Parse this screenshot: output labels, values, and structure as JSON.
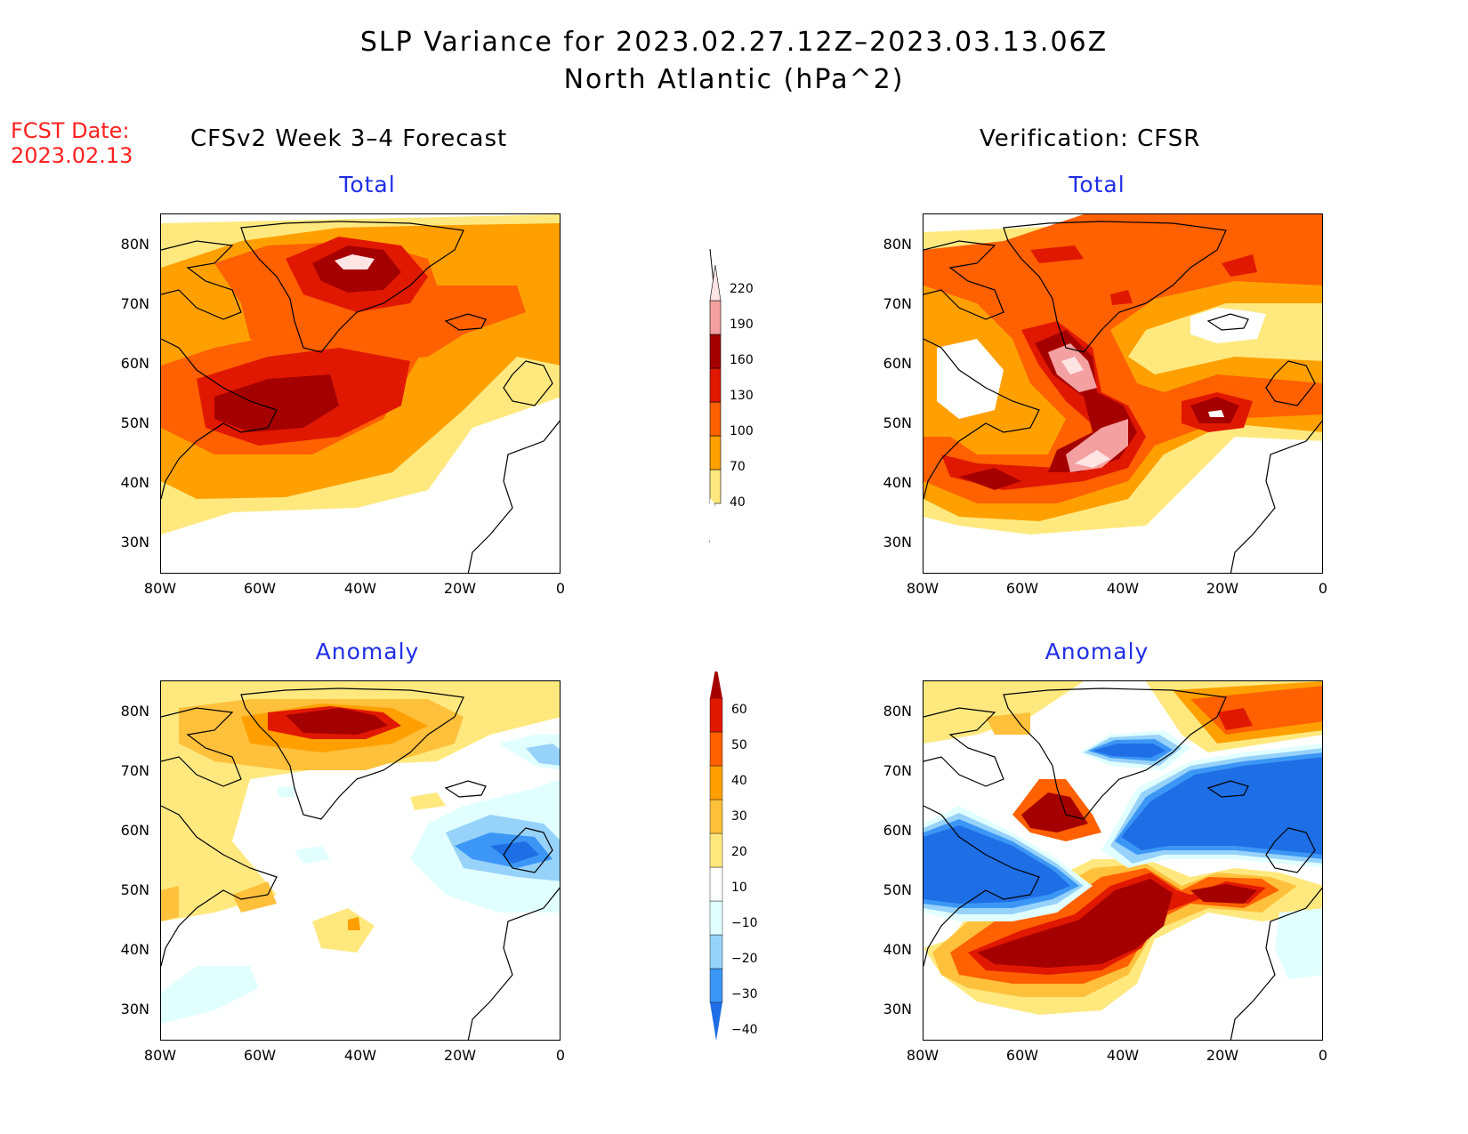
{
  "header": {
    "title_line1": "SLP Variance for 2023.02.27.12Z–2023.03.13.06Z",
    "title_line2": "North Atlantic (hPa^2)"
  },
  "fcst": {
    "line1": "FCST Date:",
    "line2": "2023.02.13"
  },
  "columns": {
    "forecast": "CFSv2 Week 3–4 Forecast",
    "verification": "Verification: CFSR"
  },
  "panels": {
    "total": "Total",
    "anomaly": "Anomaly"
  },
  "axes": {
    "lat_labels": [
      "80N",
      "70N",
      "60N",
      "50N",
      "40N",
      "30N"
    ],
    "lon_labels": [
      "80W",
      "60W",
      "40W",
      "20W",
      "0"
    ],
    "lat_range": [
      25,
      85
    ],
    "lon_range": [
      -80,
      0
    ]
  },
  "colorbars": {
    "total": {
      "labels": [
        "220",
        "190",
        "160",
        "130",
        "100",
        "70",
        "40"
      ],
      "levels": [
        40,
        70,
        100,
        130,
        160,
        190,
        220
      ],
      "colors": [
        "#ffe97f",
        "#ffa000",
        "#ff6000",
        "#e11800",
        "#a50000",
        "#f4a0a0",
        "#ffe4e4"
      ]
    },
    "anomaly": {
      "labels": [
        "60",
        "50",
        "40",
        "30",
        "20",
        "10",
        "−10",
        "−20",
        "−30",
        "−40"
      ],
      "levels": [
        -40,
        -30,
        -20,
        -10,
        10,
        20,
        30,
        40,
        50,
        60
      ],
      "colors": [
        "#1e6ee6",
        "#3c96f5",
        "#96d2fa",
        "#e1ffff",
        "#ffffff",
        "#ffe97f",
        "#ffc03c",
        "#ffa000",
        "#ff6000",
        "#e11800",
        "#a50000"
      ]
    }
  }
}
